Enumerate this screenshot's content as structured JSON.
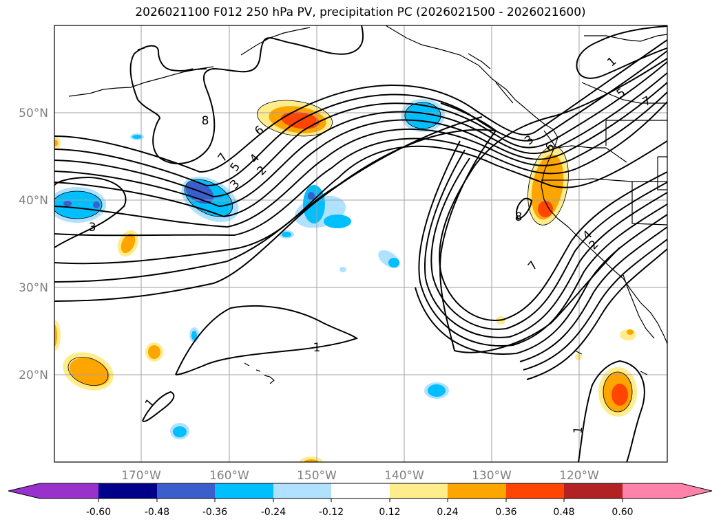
{
  "title": "2026021100 F012 250 hPa PV, precipitation PC (2026021500 - 2026021600)",
  "map": {
    "lon_range": [
      -180,
      -110
    ],
    "lat_range": [
      10,
      60
    ],
    "lon_ticks": [
      {
        "lon": -170,
        "label": "170°W"
      },
      {
        "lon": -160,
        "label": "160°W"
      },
      {
        "lon": -150,
        "label": "150°W"
      },
      {
        "lon": -140,
        "label": "140°W"
      },
      {
        "lon": -130,
        "label": "130°W"
      },
      {
        "lon": -120,
        "label": "120°W"
      }
    ],
    "lat_ticks": [
      {
        "lat": 20,
        "label": "20°N"
      },
      {
        "lat": 30,
        "label": "30°N"
      },
      {
        "lat": 40,
        "label": "40°N"
      },
      {
        "lat": 50,
        "label": "50°N"
      }
    ],
    "contour_labels": [
      "1",
      "2",
      "3",
      "4",
      "5",
      "6",
      "7",
      "8"
    ]
  },
  "colorbar": {
    "colors": [
      "#9932cc",
      "#00008b",
      "#3a5fcd",
      "#00bfff",
      "#b0e2ff",
      "#ffffff",
      "#ffec8b",
      "#ffa500",
      "#ff4500",
      "#b22222",
      "#ff82ab"
    ],
    "boundaries": [
      "-0.60",
      "-0.48",
      "-0.36",
      "-0.24",
      "-0.12",
      "0.12",
      "0.24",
      "0.36",
      "0.48",
      "0.60"
    ]
  }
}
